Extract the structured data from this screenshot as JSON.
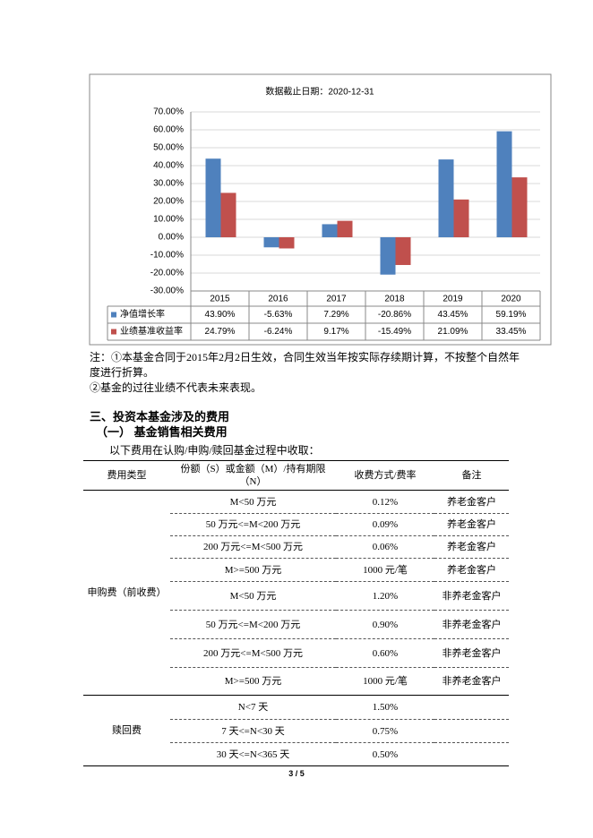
{
  "chart_data": {
    "type": "bar",
    "title": "数据截止日期：2020-12-31",
    "categories": [
      "2015",
      "2016",
      "2017",
      "2018",
      "2019",
      "2020"
    ],
    "series": [
      {
        "name": "净值增长率",
        "color": "#4f81bd",
        "values": [
          43.9,
          -5.63,
          7.29,
          -20.86,
          43.45,
          59.19
        ],
        "value_labels": [
          "43.90%",
          "-5.63%",
          "7.29%",
          "-20.86%",
          "43.45%",
          "59.19%"
        ]
      },
      {
        "name": "业绩基准收益率",
        "color": "#c0504d",
        "values": [
          24.79,
          -6.24,
          9.17,
          -15.49,
          21.09,
          33.45
        ],
        "value_labels": [
          "24.79%",
          "-6.24%",
          "9.17%",
          "-15.49%",
          "21.09%",
          "33.45%"
        ]
      }
    ],
    "ylim": [
      -30,
      70
    ],
    "yticks": [
      {
        "value": -30,
        "label": "-30.00%"
      },
      {
        "value": -20,
        "label": "-20.00%"
      },
      {
        "value": -10,
        "label": "-10.00%"
      },
      {
        "value": 0,
        "label": "0.00%"
      },
      {
        "value": 10,
        "label": "10.00%"
      },
      {
        "value": 20,
        "label": "20.00%"
      },
      {
        "value": 30,
        "label": "30.00%"
      },
      {
        "value": 40,
        "label": "40.00%"
      },
      {
        "value": 50,
        "label": "50.00%"
      },
      {
        "value": 60,
        "label": "60.00%"
      },
      {
        "value": 70,
        "label": "70.00%"
      }
    ],
    "grid": true
  },
  "notes": [
    "注：①本基金合同于2015年2月2日生效，合同生效当年按实际存续期计算，不按整个自然年度进行折算。",
    "②基金的过往业绩不代表未来表现。"
  ],
  "section_title": "三、投资本基金涉及的费用",
  "subsection_title": "（一） 基金销售相关费用",
  "intro": "以下费用在认购/申购/赎回基金过程中收取：",
  "table": {
    "header": [
      "费用类型",
      "份额（S）或金额（M）/持有期限（N）",
      "收费方式/费率",
      "备注"
    ],
    "groups": [
      {
        "name": "申购费（前收费）",
        "rows": [
          [
            "M<50 万元",
            "0.12%",
            "养老金客户"
          ],
          [
            "50 万元<=M<200 万元",
            "0.09%",
            "养老金客户"
          ],
          [
            "200 万元<=M<500 万元",
            "0.06%",
            "养老金客户"
          ],
          [
            "M>=500 万元",
            "1000 元/笔",
            "养老金客户"
          ],
          [
            "M<50 万元",
            "1.20%",
            "非养老金客户"
          ],
          [
            "50 万元<=M<200 万元",
            "0.90%",
            "非养老金客户"
          ],
          [
            "200 万元<=M<500 万元",
            "0.60%",
            "非养老金客户"
          ],
          [
            "M>=500 万元",
            "1000 元/笔",
            "非养老金客户"
          ]
        ]
      },
      {
        "name": "赎回费",
        "rows": [
          [
            "N<7 天",
            "1.50%"
          ],
          [
            "7 天<=N<30 天",
            "0.75%"
          ],
          [
            "30 天<=N<365 天",
            "0.50%"
          ]
        ]
      }
    ]
  },
  "page_number": "3 / 5"
}
